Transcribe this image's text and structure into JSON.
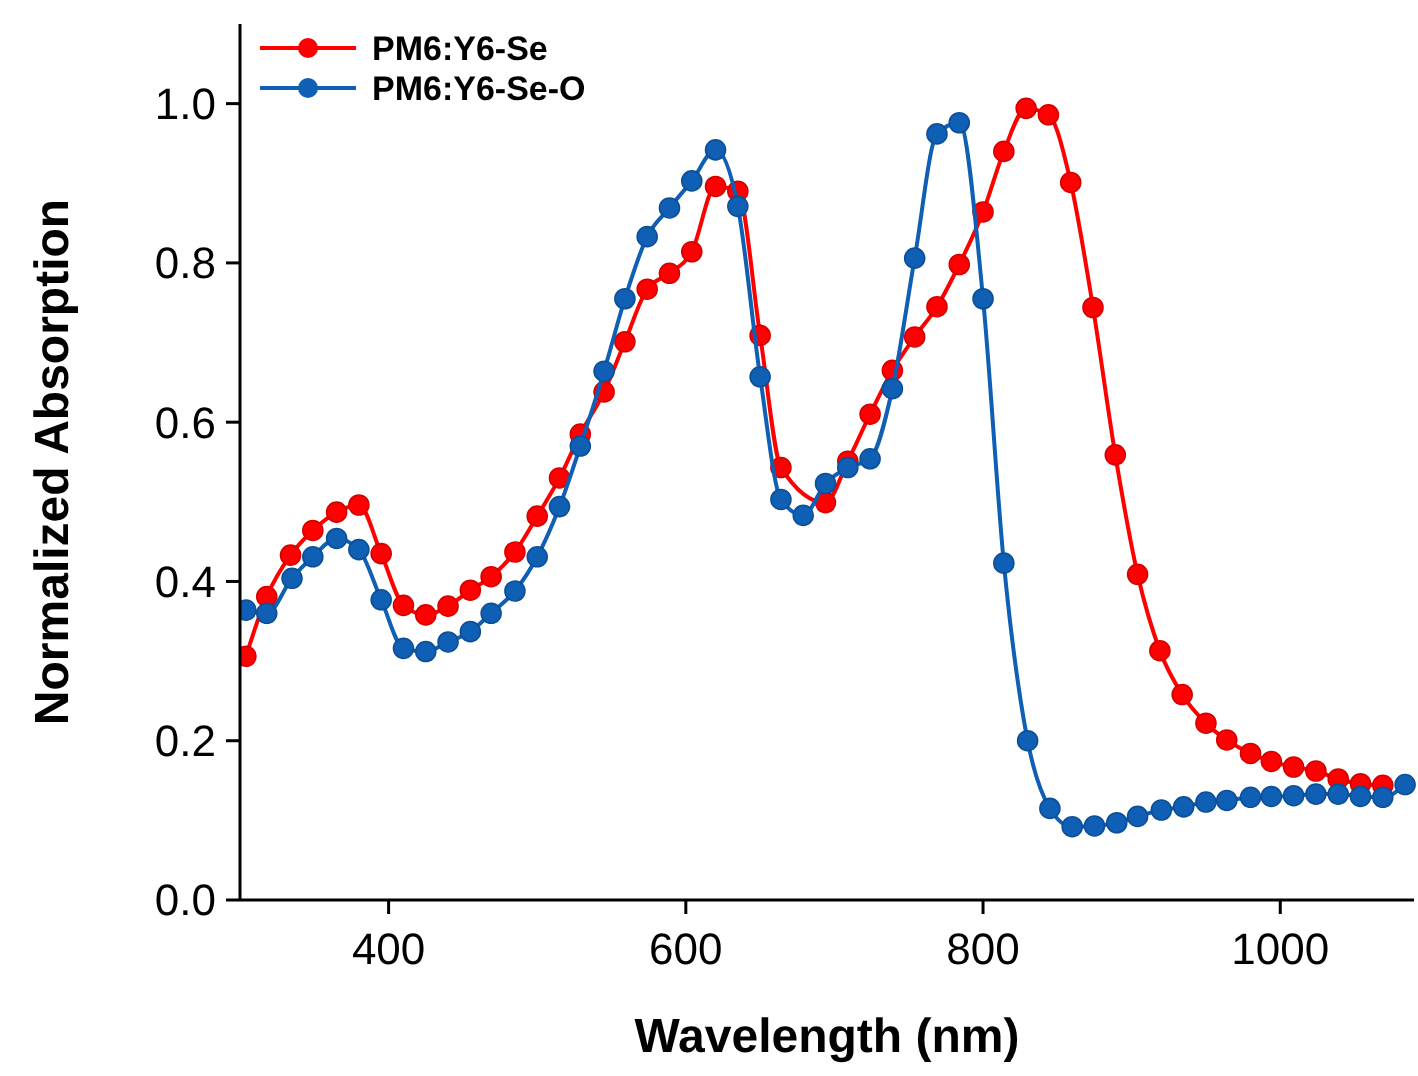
{
  "chart_data": {
    "type": "line",
    "xlabel": "Wavelength (nm)",
    "ylabel": "Normalized Absorption",
    "xlim": [
      300,
      1090
    ],
    "ylim": [
      0,
      1.1
    ],
    "xticks": [
      400,
      600,
      800,
      1000
    ],
    "yticks": [
      {
        "value": 0,
        "label": "0.0"
      },
      {
        "value": 0.2,
        "label": "0.2"
      },
      {
        "value": 0.4,
        "label": "0.4"
      },
      {
        "value": 0.6,
        "label": "0.6"
      },
      {
        "value": 0.8,
        "label": "0.8"
      },
      {
        "value": 1,
        "label": "1.0"
      }
    ],
    "grid": false,
    "legend": "top left",
    "marker": "circle",
    "line_style": "solid",
    "series": [
      {
        "name": "PM6:Y6-Se",
        "color": "#ff0000",
        "x": [
          304,
          318,
          334,
          349,
          365,
          380,
          395,
          410,
          425,
          440,
          455,
          469,
          485,
          500,
          515,
          529,
          545,
          559,
          574,
          589,
          604,
          620,
          635,
          650,
          664,
          679,
          694,
          709,
          724,
          739,
          754,
          769,
          784,
          800,
          814,
          829,
          844,
          859,
          874,
          889,
          904,
          919,
          934,
          950,
          964,
          980,
          994,
          1009,
          1024,
          1039,
          1054,
          1069
        ],
        "values": [
          0.306,
          0.381,
          0.433,
          0.464,
          0.487,
          0.496,
          0.435,
          0.37,
          0.358,
          0.369,
          0.389,
          0.406,
          0.437,
          0.482,
          0.53,
          0.585,
          0.638,
          0.701,
          0.767,
          0.787,
          0.814,
          0.896,
          0.89,
          0.709,
          0.543,
          null,
          0.499,
          0.551,
          0.61,
          0.665,
          0.707,
          0.745,
          0.798,
          0.864,
          0.94,
          0.994,
          0.986,
          0.901,
          0.744,
          0.559,
          0.409,
          0.313,
          0.258,
          0.222,
          0.201,
          0.184,
          0.174,
          0.167,
          0.162,
          0.152,
          0.146,
          0.144
        ]
      },
      {
        "name": "PM6:Y6-Se-O",
        "color": "#0f5fb5",
        "x": [
          304,
          318,
          335,
          349,
          365,
          380,
          395,
          410,
          425,
          440,
          455,
          469,
          485,
          500,
          515,
          529,
          545,
          559,
          574,
          589,
          604,
          620,
          635,
          650,
          664,
          679,
          694,
          709,
          724,
          739,
          754,
          769,
          784,
          800,
          814,
          830,
          845,
          860,
          875,
          890,
          904,
          920,
          935,
          950,
          964,
          980,
          994,
          1009,
          1024,
          1039,
          1054,
          1069,
          1084
        ],
        "values": [
          0.364,
          0.36,
          0.404,
          0.431,
          0.454,
          0.44,
          0.377,
          0.316,
          0.312,
          0.324,
          0.337,
          0.36,
          0.388,
          0.431,
          0.494,
          0.57,
          0.664,
          0.755,
          0.833,
          0.869,
          0.903,
          0.942,
          0.871,
          0.657,
          0.503,
          0.483,
          0.523,
          0.543,
          0.554,
          0.642,
          0.806,
          0.962,
          0.976,
          0.755,
          0.423,
          0.2,
          0.115,
          0.092,
          0.093,
          0.097,
          0.105,
          0.113,
          0.117,
          0.123,
          0.125,
          0.129,
          0.13,
          0.131,
          0.133,
          0.133,
          0.13,
          0.129,
          0.145
        ]
      }
    ]
  }
}
